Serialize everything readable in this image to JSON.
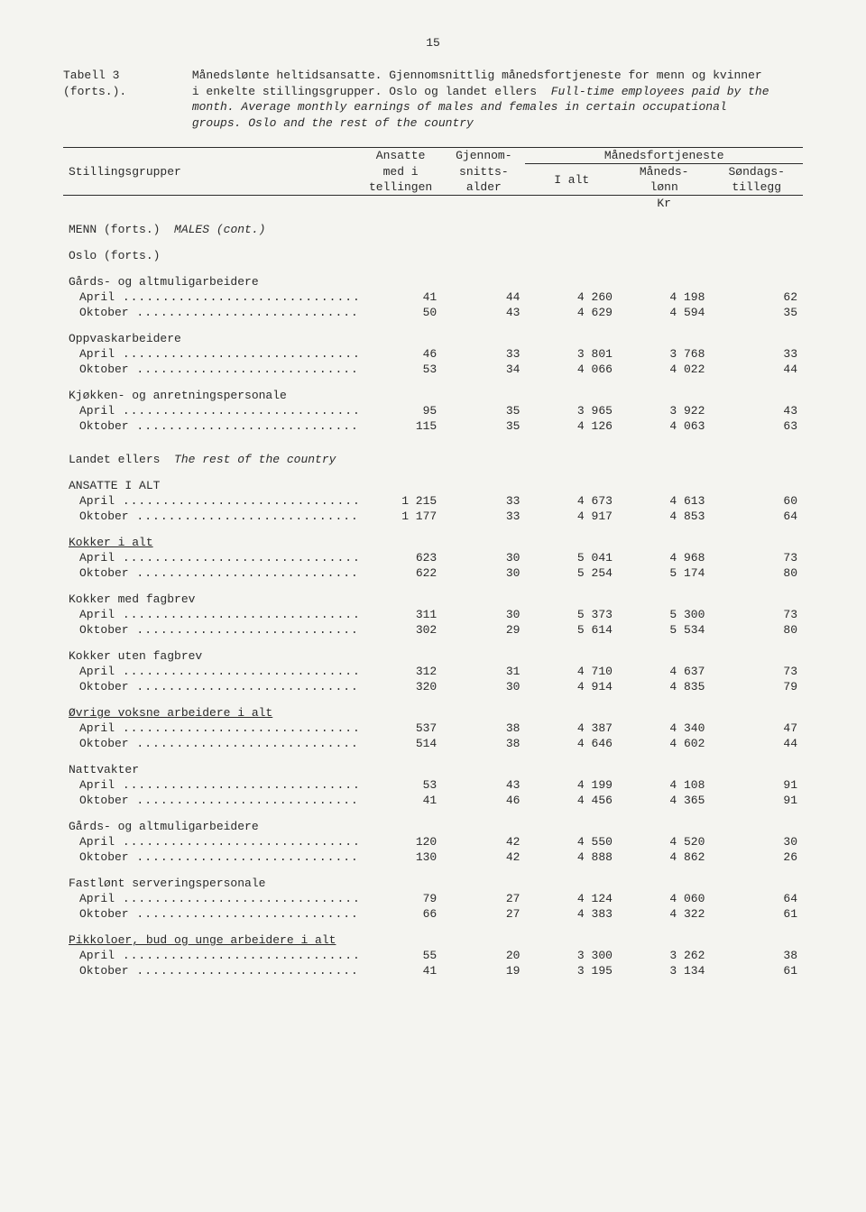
{
  "page_number": "15",
  "caption": {
    "label": "Tabell 3 (forts.).",
    "line1": "Månedslønte heltidsansatte.  Gjennomsnittlig månedsfortjeneste for menn og kvinner i enkelte stillingsgrupper.  Oslo og landet ellers",
    "line2_italic": "Full-time employees paid by the month.  Average monthly earnings of males and females in certain occupational groups.  Oslo and the rest of the country"
  },
  "headers": {
    "col0": "Stillingsgrupper",
    "col1a": "Ansatte",
    "col1b": "med i",
    "col1c": "tellingen",
    "col2a": "Gjennom-",
    "col2b": "snitts-",
    "col2c": "alder",
    "span345": "Månedsfortjeneste",
    "col3": "I alt",
    "col4a": "Måneds-",
    "col4b": "lønn",
    "col5a": "Søndags-",
    "col5b": "tillegg",
    "unit": "Kr"
  },
  "section_males": "MENN (forts.)",
  "section_males_it": "MALES (cont.)",
  "oslo_forts": "Oslo (forts.)",
  "landet": "Landet ellers",
  "landet_it": "The rest of the country",
  "ansatte_alt": "ANSATTE I ALT",
  "groups": {
    "gards": {
      "title": "Gårds- og altmuligarbeidere",
      "apr": [
        "41",
        "44",
        "4 260",
        "4 198",
        "62"
      ],
      "okt": [
        "50",
        "43",
        "4 629",
        "4 594",
        "35"
      ]
    },
    "oppvask": {
      "title": "Oppvaskarbeidere",
      "apr": [
        "46",
        "33",
        "3 801",
        "3 768",
        "33"
      ],
      "okt": [
        "53",
        "34",
        "4 066",
        "4 022",
        "44"
      ]
    },
    "kjokken": {
      "title": "Kjøkken- og anretningspersonale",
      "apr": [
        "95",
        "35",
        "3 965",
        "3 922",
        "43"
      ],
      "okt": [
        "115",
        "35",
        "4 126",
        "4 063",
        "63"
      ]
    },
    "ansalt": {
      "apr": [
        "1 215",
        "33",
        "4 673",
        "4 613",
        "60"
      ],
      "okt": [
        "1 177",
        "33",
        "4 917",
        "4 853",
        "64"
      ]
    },
    "kokker": {
      "title": "Kokker i alt",
      "apr": [
        "623",
        "30",
        "5 041",
        "4 968",
        "73"
      ],
      "okt": [
        "622",
        "30",
        "5 254",
        "5 174",
        "80"
      ]
    },
    "kokkerf": {
      "title": "Kokker med fagbrev",
      "apr": [
        "311",
        "30",
        "5 373",
        "5 300",
        "73"
      ],
      "okt": [
        "302",
        "29",
        "5 614",
        "5 534",
        "80"
      ]
    },
    "kokkeru": {
      "title": "Kokker uten fagbrev",
      "apr": [
        "312",
        "31",
        "4 710",
        "4 637",
        "73"
      ],
      "okt": [
        "320",
        "30",
        "4 914",
        "4 835",
        "79"
      ]
    },
    "ovrige": {
      "title": "Øvrige voksne arbeidere i alt",
      "apr": [
        "537",
        "38",
        "4 387",
        "4 340",
        "47"
      ],
      "okt": [
        "514",
        "38",
        "4 646",
        "4 602",
        "44"
      ]
    },
    "natt": {
      "title": "Nattvakter",
      "apr": [
        "53",
        "43",
        "4 199",
        "4 108",
        "91"
      ],
      "okt": [
        "41",
        "46",
        "4 456",
        "4 365",
        "91"
      ]
    },
    "gards2": {
      "title": "Gårds- og altmuligarbeidere",
      "apr": [
        "120",
        "42",
        "4 550",
        "4 520",
        "30"
      ],
      "okt": [
        "130",
        "42",
        "4 888",
        "4 862",
        "26"
      ]
    },
    "fastlont": {
      "title": "Fastlønt serveringspersonale",
      "apr": [
        "79",
        "27",
        "4 124",
        "4 060",
        "64"
      ],
      "okt": [
        "66",
        "27",
        "4 383",
        "4 322",
        "61"
      ]
    },
    "pikko": {
      "title": "Pikkoloer, bud og unge arbeidere i alt",
      "apr": [
        "55",
        "20",
        "3 300",
        "3 262",
        "38"
      ],
      "okt": [
        "41",
        "19",
        "3 195",
        "3 134",
        "61"
      ]
    }
  },
  "labels": {
    "april": "April",
    "oktober": "Oktober"
  }
}
